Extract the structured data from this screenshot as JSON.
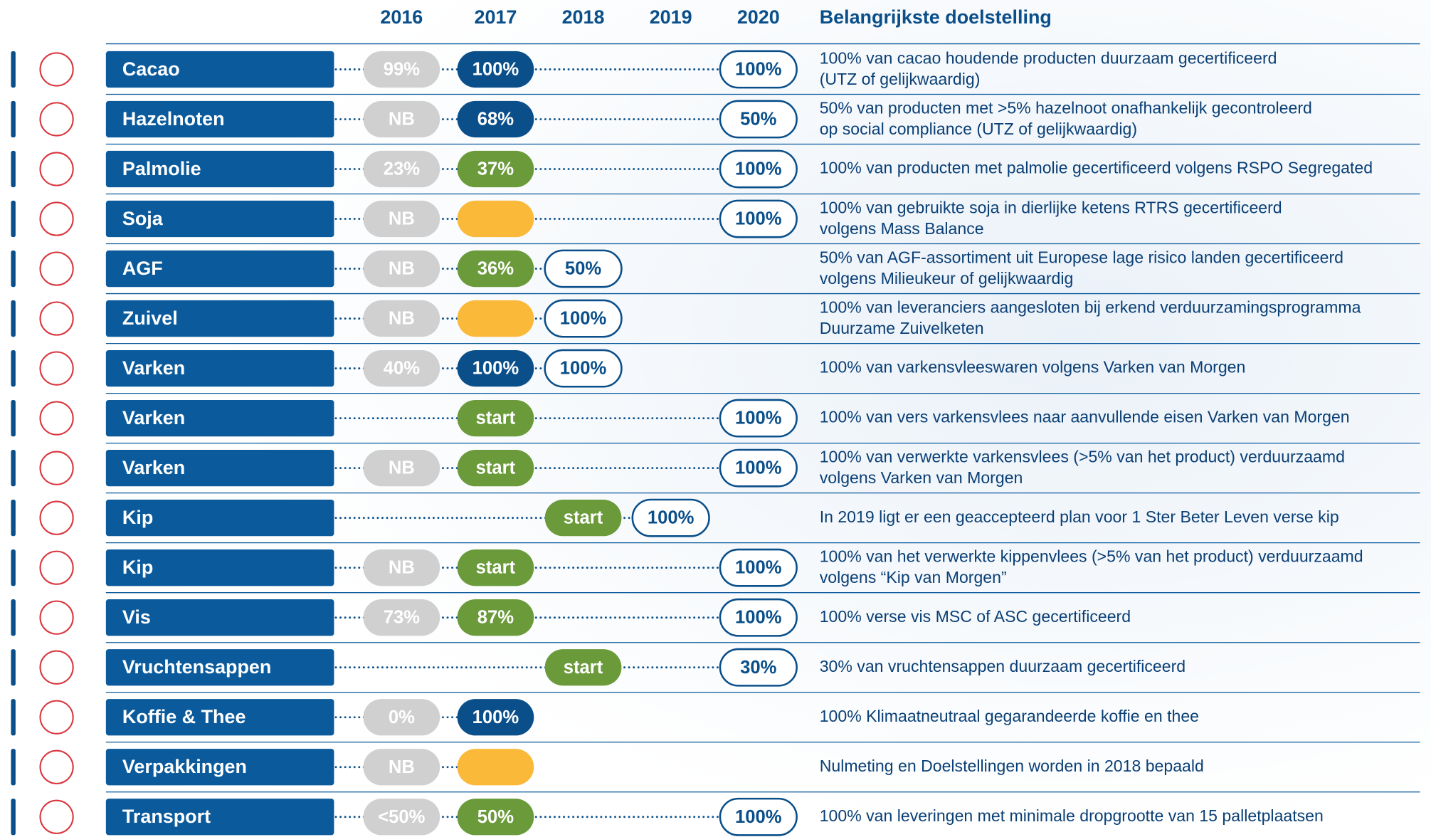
{
  "header": {
    "years": [
      "2016",
      "2017",
      "2018",
      "2019",
      "2020"
    ],
    "goal_title": "Belangrijkste doelstelling"
  },
  "rows": [
    {
      "label": "Cacao",
      "cells": [
        {
          "text": "99%",
          "style": "previous"
        },
        {
          "text": "100%",
          "style": "achieved"
        },
        null,
        null,
        {
          "text": "100%",
          "style": "target"
        }
      ],
      "goal": [
        "100% van cacao houdende producten duurzaam gecertificeerd",
        "(UTZ of gelijkwaardig)"
      ]
    },
    {
      "label": "Hazelnoten",
      "cells": [
        {
          "text": "NB",
          "style": "previous"
        },
        {
          "text": "68%",
          "style": "achieved"
        },
        null,
        null,
        {
          "text": "50%",
          "style": "target"
        }
      ],
      "goal": [
        "50% van producten met >5% hazelnoot onafhankelijk gecontroleerd",
        "op social compliance (UTZ of gelijkwaardig)"
      ]
    },
    {
      "label": "Palmolie",
      "cells": [
        {
          "text": "23%",
          "style": "previous"
        },
        {
          "text": "37%",
          "style": "progress"
        },
        null,
        null,
        {
          "text": "100%",
          "style": "target"
        }
      ],
      "goal": [
        "100% van producten met palmolie gecertificeerd volgens RSPO Segregated"
      ]
    },
    {
      "label": "Soja",
      "cells": [
        {
          "text": "NB",
          "style": "previous"
        },
        {
          "style": "pending"
        },
        null,
        null,
        {
          "text": "100%",
          "style": "target"
        }
      ],
      "goal": [
        "100% van gebruikte soja in dierlijke ketens RTRS gecertificeerd",
        "volgens Mass Balance"
      ]
    },
    {
      "label": "AGF",
      "cells": [
        {
          "text": "NB",
          "style": "previous"
        },
        {
          "text": "36%",
          "style": "progress"
        },
        {
          "text": "50%",
          "style": "target"
        },
        null,
        null
      ],
      "goal": [
        "50% van AGF-assortiment uit Europese lage risico landen gecertificeerd",
        "volgens Milieukeur of gelijkwaardig"
      ]
    },
    {
      "label": "Zuivel",
      "cells": [
        {
          "text": "NB",
          "style": "previous"
        },
        {
          "style": "pending"
        },
        {
          "text": "100%",
          "style": "target"
        },
        null,
        null
      ],
      "goal": [
        "100% van leveranciers aangesloten bij erkend verduurzamingsprogramma",
        "Duurzame Zuivelketen"
      ]
    },
    {
      "label": "Varken",
      "cells": [
        {
          "text": "40%",
          "style": "previous"
        },
        {
          "text": "100%",
          "style": "achieved"
        },
        {
          "text": "100%",
          "style": "target"
        },
        null,
        null
      ],
      "goal": [
        "100% van varkensvleeswaren volgens Varken van Morgen"
      ]
    },
    {
      "label": "Varken",
      "cells": [
        null,
        {
          "text": "start",
          "style": "progress"
        },
        null,
        null,
        {
          "text": "100%",
          "style": "target"
        }
      ],
      "goal": [
        "100% van vers varkensvlees naar aanvullende eisen Varken van Morgen"
      ]
    },
    {
      "label": "Varken",
      "cells": [
        {
          "text": "NB",
          "style": "previous"
        },
        {
          "text": "start",
          "style": "progress"
        },
        null,
        null,
        {
          "text": "100%",
          "style": "target"
        }
      ],
      "goal": [
        "100% van verwerkte varkensvlees (>5% van het product) verduurzaamd",
        "volgens Varken van Morgen"
      ]
    },
    {
      "label": "Kip",
      "cells": [
        null,
        null,
        {
          "text": "start",
          "style": "progress"
        },
        {
          "text": "100%",
          "style": "target"
        },
        null
      ],
      "goal": [
        "In 2019 ligt er een geaccepteerd plan voor 1 Ster Beter Leven verse kip"
      ]
    },
    {
      "label": "Kip",
      "cells": [
        {
          "text": "NB",
          "style": "previous"
        },
        {
          "text": "start",
          "style": "progress"
        },
        null,
        null,
        {
          "text": "100%",
          "style": "target"
        }
      ],
      "goal": [
        "100% van het verwerkte kippenvlees (>5% van het product) verduurzaamd",
        "volgens “Kip van Morgen”"
      ]
    },
    {
      "label": "Vis",
      "cells": [
        {
          "text": "73%",
          "style": "previous"
        },
        {
          "text": "87%",
          "style": "progress"
        },
        null,
        null,
        {
          "text": "100%",
          "style": "target"
        }
      ],
      "goal": [
        "100% verse vis MSC of ASC gecertificeerd"
      ]
    },
    {
      "label": "Vruchtensappen",
      "cells": [
        null,
        null,
        {
          "text": "start",
          "style": "progress"
        },
        null,
        {
          "text": "30%",
          "style": "target"
        }
      ],
      "goal": [
        "30% van vruchtensappen duurzaam gecertificeerd"
      ]
    },
    {
      "label": "Koffie & Thee",
      "cells": [
        {
          "text": "0%",
          "style": "previous"
        },
        {
          "text": "100%",
          "style": "achieved"
        },
        null,
        null,
        null
      ],
      "goal": [
        "100% Klimaatneutraal gegarandeerde koffie en thee"
      ]
    },
    {
      "label": "Verpakkingen",
      "cells": [
        {
          "text": "NB",
          "style": "previous"
        },
        {
          "style": "pending"
        },
        null,
        null,
        null
      ],
      "goal": [
        "Nulmeting en Doelstellingen worden in 2018 bepaald"
      ]
    },
    {
      "label": "Transport",
      "cells": [
        {
          "text": "<50%",
          "style": "previous"
        },
        {
          "text": "50%",
          "style": "progress"
        },
        null,
        null,
        {
          "text": "100%",
          "style": "target"
        }
      ],
      "goal": [
        "100% van leveringen met minimale dropgrootte van 15 palletplaatsen"
      ]
    }
  ]
}
